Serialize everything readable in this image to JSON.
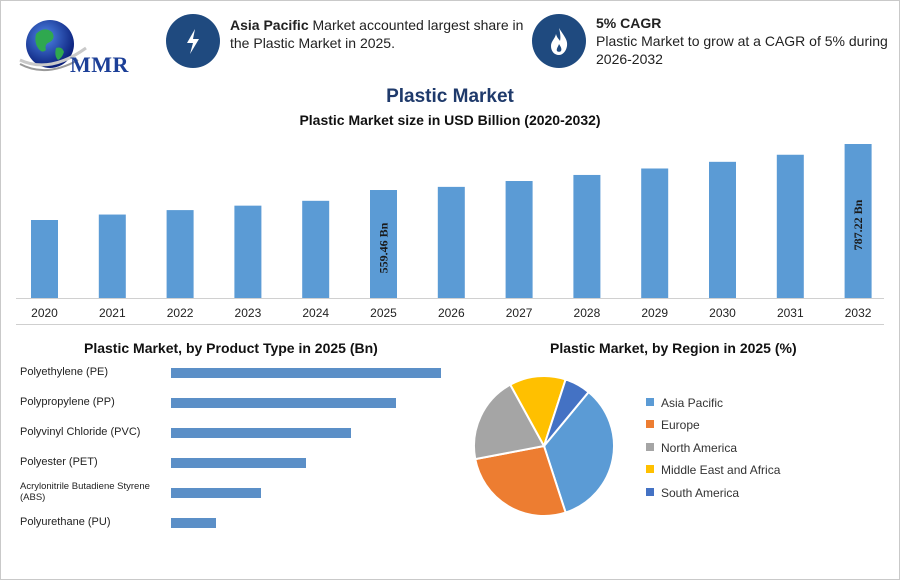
{
  "logo": {
    "text": "MMR"
  },
  "info1": {
    "highlight": "Asia Pacific",
    "text": " Market accounted largest share in the Plastic Market in 2025.",
    "icon": "lightning-icon"
  },
  "info2": {
    "highlight": "5% CAGR",
    "text": "Plastic Market to grow at a CAGR of 5% during 2026-2032",
    "icon": "flame-icon"
  },
  "title": "Plastic Market",
  "subtitle": "Plastic Market size in USD Billion (2020-2032)",
  "colors": {
    "bar": "#5b9bd5",
    "hbar": "#5b8fc7",
    "title": "#1f3a6b",
    "icon_bg": "#1f4a7f"
  },
  "chart_data": [
    {
      "type": "bar",
      "title": "Plastic Market size in USD Billion (2020-2032)",
      "categories": [
        "2020",
        "2021",
        "2022",
        "2023",
        "2024",
        "2025",
        "2026",
        "2027",
        "2028",
        "2029",
        "2030",
        "2031",
        "2032"
      ],
      "values": [
        411,
        438,
        460,
        482,
        506,
        559.46,
        575,
        604,
        634,
        666,
        699,
        734,
        787.22
      ],
      "data_labels": {
        "2025": "559.46 Bn",
        "2032": "787.22 Bn"
      },
      "ylim": [
        0,
        800
      ],
      "grid": false
    },
    {
      "type": "bar",
      "orientation": "horizontal",
      "title": "Plastic Market, by Product Type in 2025 (Bn)",
      "categories": [
        "Polyethylene (PE)",
        "Polypropylene (PP)",
        "Polyvinyl Chloride (PVC)",
        "Polyester (PET)",
        "Acrylonitrile Butadiene Styrene (ABS)",
        "Polyurethane (PU)"
      ],
      "values": [
        180,
        150,
        120,
        90,
        60,
        30
      ],
      "grid": false
    },
    {
      "type": "pie",
      "title": "Plastic Market, by Region in 2025 (%)",
      "categories": [
        "Asia Pacific",
        "Europe",
        "North America",
        "Middle East and Africa",
        "South America"
      ],
      "values": [
        34,
        27,
        20,
        13,
        6
      ],
      "colors": [
        "#5b9bd5",
        "#ed7d31",
        "#a5a5a5",
        "#ffc000",
        "#4472c4"
      ],
      "legend": "right"
    }
  ]
}
